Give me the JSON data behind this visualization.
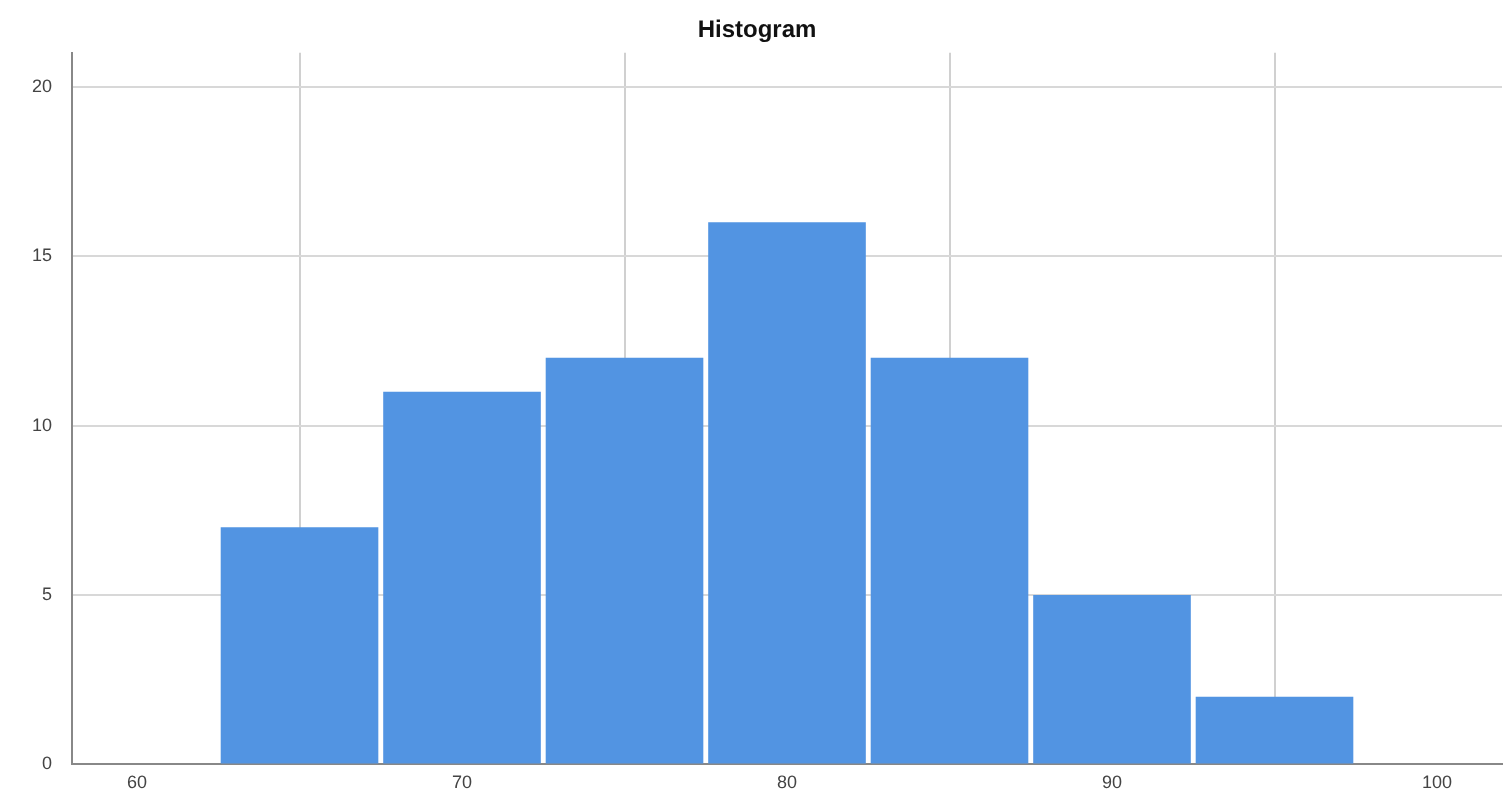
{
  "chart_data": {
    "type": "histogram",
    "title": "Histogram",
    "bins": [
      62.5,
      67.5,
      72.5,
      77.5,
      82.5,
      87.5,
      92.5,
      97.5
    ],
    "values": [
      7,
      11,
      12,
      16,
      12,
      5,
      2
    ],
    "color": "#5294e2",
    "xlim": [
      58,
      102
    ],
    "xticks": [
      60,
      70,
      80,
      90,
      100
    ],
    "ylim": [
      0,
      21
    ],
    "yticks": [
      0,
      5,
      10,
      15,
      20
    ],
    "grid": true,
    "legend": false
  }
}
